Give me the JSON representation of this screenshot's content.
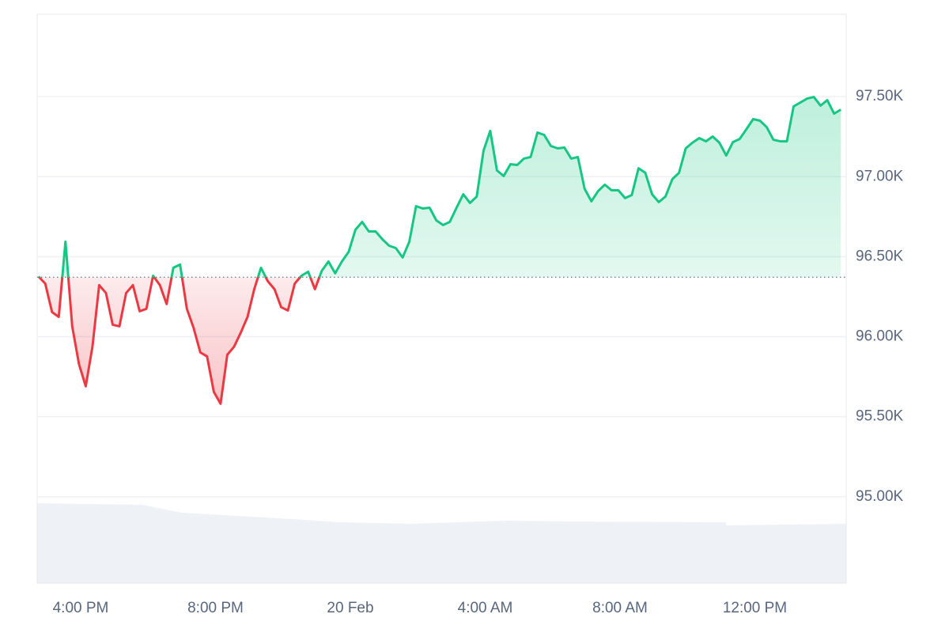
{
  "chart_data": {
    "type": "line",
    "x": [
      -9.25,
      -9.05,
      -8.85,
      -8.65,
      -8.45,
      -8.25,
      -8.05,
      -7.85,
      -7.65,
      -7.45,
      -7.25,
      -7.05,
      -6.85,
      -6.65,
      -6.45,
      -6.25,
      -6.05,
      -5.85,
      -5.65,
      -5.45,
      -5.25,
      -5.05,
      -4.85,
      -4.65,
      -4.45,
      -4.25,
      -4.05,
      -3.85,
      -3.65,
      -3.45,
      -3.25,
      -3.05,
      -2.85,
      -2.65,
      -2.45,
      -2.25,
      -2.05,
      -1.85,
      -1.65,
      -1.45,
      -1.25,
      -1.05,
      -0.85,
      -0.65,
      -0.45,
      -0.25,
      -0.05,
      0.15,
      0.35,
      0.55,
      0.75,
      0.95,
      1.15,
      1.35,
      1.55,
      1.75,
      1.95,
      2.15,
      2.35,
      2.55,
      2.75,
      2.95,
      3.15,
      3.35,
      3.55,
      3.75,
      3.95,
      4.15,
      4.35,
      4.55,
      4.75,
      4.95,
      5.15,
      5.35,
      5.55,
      5.75,
      5.95,
      6.15,
      6.35,
      6.55,
      6.75,
      6.95,
      7.15,
      7.35,
      7.55,
      7.75,
      7.95,
      8.15,
      8.35,
      8.55,
      8.75,
      8.95,
      9.15,
      9.35,
      9.55,
      9.75,
      9.95,
      10.15,
      10.35,
      10.55,
      10.75,
      10.95,
      11.15,
      11.35,
      11.55,
      11.75,
      11.95,
      12.15,
      12.35,
      12.55,
      12.75,
      12.95,
      13.15,
      13.35,
      13.55,
      13.75,
      13.95,
      14.15,
      14.35,
      14.55
    ],
    "values": [
      96376,
      96332,
      96154,
      96124,
      96594,
      96065,
      95828,
      95690,
      95937,
      96322,
      96273,
      96075,
      96065,
      96273,
      96322,
      96159,
      96174,
      96381,
      96322,
      96204,
      96431,
      96451,
      96174,
      96055,
      95902,
      95877,
      95655,
      95581,
      95887,
      95937,
      96026,
      96124,
      96297,
      96431,
      96347,
      96297,
      96184,
      96164,
      96332,
      96381,
      96406,
      96297,
      96411,
      96470,
      96396,
      96470,
      96530,
      96668,
      96717,
      96658,
      96658,
      96609,
      96569,
      96554,
      96495,
      96594,
      96816,
      96801,
      96806,
      96727,
      96698,
      96717,
      96806,
      96890,
      96836,
      96876,
      97162,
      97286,
      97039,
      97004,
      97078,
      97073,
      97113,
      97123,
      97276,
      97261,
      97192,
      97177,
      97182,
      97113,
      97123,
      96925,
      96846,
      96910,
      96950,
      96915,
      96915,
      96866,
      96885,
      97053,
      97024,
      96890,
      96841,
      96876,
      96984,
      97024,
      97177,
      97212,
      97241,
      97221,
      97251,
      97212,
      97132,
      97216,
      97236,
      97296,
      97360,
      97350,
      97310,
      97231,
      97221,
      97221,
      97439,
      97463,
      97488,
      97498,
      97444,
      97478,
      97394,
      97419
    ],
    "baseline": 96372,
    "up_color": "#16c784",
    "down_color": "#ea3943",
    "xlim": [
      -9.29,
      14.71
    ],
    "xticks": [
      {
        "value": -8,
        "label": "4:00 PM"
      },
      {
        "value": -4,
        "label": "8:00 PM"
      },
      {
        "value": 0,
        "label": "20 Feb"
      },
      {
        "value": 4,
        "label": "4:00 AM"
      },
      {
        "value": 8,
        "label": "8:00 AM"
      },
      {
        "value": 12,
        "label": "12:00 PM"
      }
    ],
    "ylim": [
      94460,
      98015
    ],
    "yticks": [
      {
        "value": 95000,
        "label": "95.00K"
      },
      {
        "value": 95500,
        "label": "95.50K"
      },
      {
        "value": 96000,
        "label": "96.00K"
      },
      {
        "value": 96500,
        "label": "96.50K"
      },
      {
        "value": 97000,
        "label": "97.00K"
      },
      {
        "value": 97500,
        "label": "97.50K"
      }
    ],
    "grid": true
  }
}
